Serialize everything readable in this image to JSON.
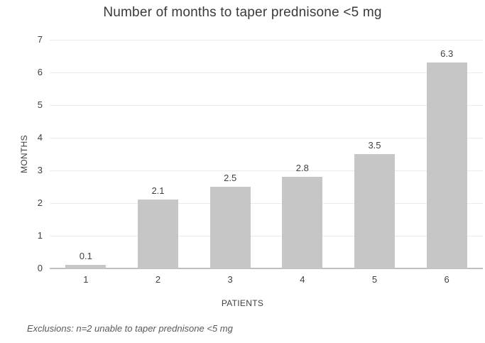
{
  "chart_data": {
    "type": "bar",
    "title": "Number of months to taper prednisone <5 mg",
    "categories": [
      "1",
      "2",
      "3",
      "4",
      "5",
      "6"
    ],
    "values": [
      0.1,
      2.1,
      2.5,
      2.8,
      3.5,
      6.3
    ],
    "data_labels": [
      "0.1",
      "2.1",
      "2.5",
      "2.8",
      "3.5",
      "6.3"
    ],
    "xlabel": "PATIENTS",
    "ylabel": "MONTHS",
    "ylim": [
      0,
      7
    ],
    "yticks": [
      0,
      1,
      2,
      3,
      4,
      5,
      6,
      7
    ],
    "legend": "none",
    "grid": "horizontal",
    "note": "Exclusions: n=2 unable to taper prednisone <5 mg",
    "colors": {
      "bar": "#c6c6c6",
      "gridline": "#eaeaea",
      "axis_line": "#c0c0c0",
      "tick_text": "#404040",
      "title_text": "#3a3a3a",
      "note_text": "#595959",
      "background": "#ffffff"
    }
  }
}
